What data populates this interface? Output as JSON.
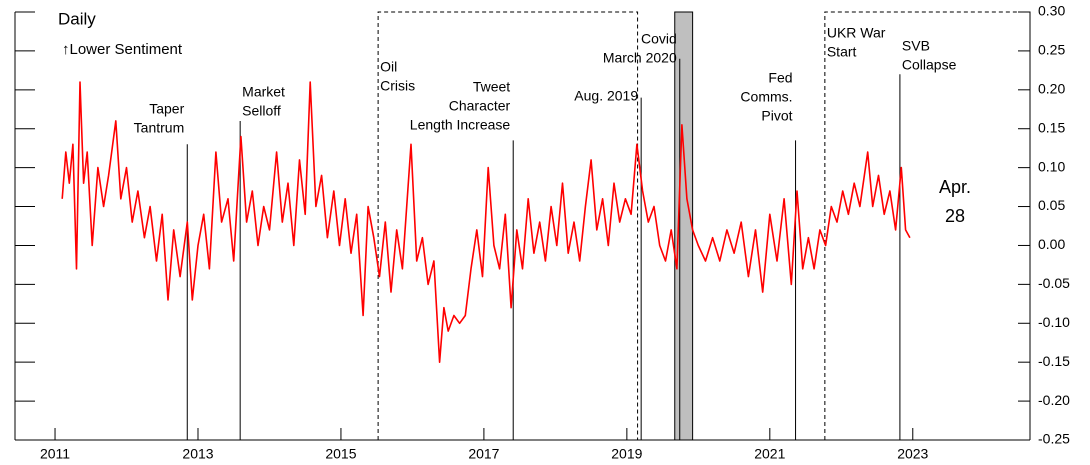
{
  "chart_data": {
    "type": "line",
    "annotations": [
      "Daily",
      "↑Lower Sentiment",
      "Apr.",
      "28"
    ],
    "color": "#ff0000",
    "x": [
      2011.1,
      2011.15,
      2011.2,
      2011.25,
      2011.3,
      2011.35,
      2011.4,
      2011.45,
      2011.52,
      2011.6,
      2011.68,
      2011.75,
      2011.85,
      2011.92,
      2012.0,
      2012.08,
      2012.16,
      2012.25,
      2012.33,
      2012.42,
      2012.5,
      2012.58,
      2012.66,
      2012.75,
      2012.85,
      2012.92,
      2013.0,
      2013.08,
      2013.16,
      2013.25,
      2013.33,
      2013.42,
      2013.5,
      2013.6,
      2013.68,
      2013.76,
      2013.84,
      2013.92,
      2014.0,
      2014.1,
      2014.18,
      2014.26,
      2014.34,
      2014.42,
      2014.5,
      2014.57,
      2014.65,
      2014.73,
      2014.81,
      2014.9,
      2014.98,
      2015.06,
      2015.14,
      2015.22,
      2015.31,
      2015.38,
      2015.46,
      2015.54,
      2015.62,
      2015.7,
      2015.78,
      2015.86,
      2015.98,
      2016.06,
      2016.14,
      2016.22,
      2016.3,
      2016.38,
      2016.44,
      2016.5,
      2016.58,
      2016.66,
      2016.74,
      2016.82,
      2016.9,
      2016.98,
      2017.06,
      2017.14,
      2017.22,
      2017.3,
      2017.38,
      2017.46,
      2017.54,
      2017.62,
      2017.7,
      2017.78,
      2017.86,
      2017.94,
      2018.02,
      2018.1,
      2018.18,
      2018.26,
      2018.34,
      2018.42,
      2018.5,
      2018.58,
      2018.66,
      2018.74,
      2018.82,
      2018.9,
      2018.98,
      2019.06,
      2019.14,
      2019.22,
      2019.3,
      2019.38,
      2019.46,
      2019.54,
      2019.62,
      2019.7,
      2019.77,
      2019.84,
      2019.92,
      2020.0,
      2020.1,
      2020.2,
      2020.3,
      2020.4,
      2020.5,
      2020.6,
      2020.7,
      2020.8,
      2020.9,
      2021.0,
      2021.1,
      2021.2,
      2021.3,
      2021.38,
      2021.46,
      2021.54,
      2021.62,
      2021.7,
      2021.78,
      2021.86,
      2021.94,
      2022.02,
      2022.1,
      2022.18,
      2022.26,
      2022.37,
      2022.44,
      2022.52,
      2022.6,
      2022.68,
      2022.76,
      2022.84,
      2022.9,
      2022.96
    ],
    "values": [
      0.06,
      0.12,
      0.08,
      0.13,
      -0.03,
      0.21,
      0.08,
      0.12,
      0.0,
      0.1,
      0.05,
      0.09,
      0.16,
      0.06,
      0.1,
      0.03,
      0.07,
      0.01,
      0.05,
      -0.02,
      0.04,
      -0.07,
      0.02,
      -0.04,
      0.03,
      -0.07,
      0.0,
      0.04,
      -0.03,
      0.12,
      0.03,
      0.06,
      -0.02,
      0.14,
      0.03,
      0.07,
      0.0,
      0.05,
      0.02,
      0.12,
      0.03,
      0.08,
      0.0,
      0.11,
      0.04,
      0.21,
      0.05,
      0.09,
      0.01,
      0.07,
      0.0,
      0.06,
      -0.01,
      0.04,
      -0.09,
      0.05,
      0.01,
      -0.04,
      0.03,
      -0.06,
      0.02,
      -0.03,
      0.13,
      -0.02,
      0.01,
      -0.05,
      -0.02,
      -0.15,
      -0.08,
      -0.11,
      -0.09,
      -0.1,
      -0.09,
      -0.03,
      0.02,
      -0.04,
      0.1,
      0.0,
      -0.03,
      0.04,
      -0.08,
      0.02,
      -0.03,
      0.06,
      -0.01,
      0.03,
      -0.02,
      0.05,
      0.0,
      0.08,
      -0.01,
      0.03,
      -0.02,
      0.05,
      0.11,
      0.02,
      0.06,
      0.0,
      0.08,
      0.03,
      0.06,
      0.04,
      0.13,
      0.07,
      0.03,
      0.05,
      0.0,
      -0.02,
      0.02,
      -0.03,
      0.155,
      0.06,
      0.02,
      0.0,
      -0.02,
      0.01,
      -0.02,
      0.02,
      -0.01,
      0.03,
      -0.04,
      0.02,
      -0.06,
      0.04,
      -0.02,
      0.06,
      -0.05,
      0.07,
      -0.03,
      0.01,
      -0.03,
      0.02,
      0.0,
      0.05,
      0.03,
      0.07,
      0.04,
      0.08,
      0.05,
      0.12,
      0.05,
      0.09,
      0.04,
      0.07,
      0.02,
      0.1,
      0.02,
      0.01
    ],
    "xlim": [
      2010.44,
      2024.64
    ],
    "xticks": [
      2011,
      2013,
      2015,
      2017,
      2019,
      2021,
      2023
    ],
    "ylim": [
      -0.25,
      0.3
    ],
    "yticks": [
      {
        "value": 0.3,
        "label": "0.30"
      },
      {
        "value": 0.25,
        "label": "0.25"
      },
      {
        "value": 0.2,
        "label": "0.20"
      },
      {
        "value": 0.15,
        "label": "0.15"
      },
      {
        "value": 0.1,
        "label": "0.10"
      },
      {
        "value": 0.05,
        "label": "0.05"
      },
      {
        "value": 0,
        "label": "0.00"
      },
      {
        "value": -0.05,
        "label": "-0.05"
      },
      {
        "value": -0.1,
        "label": "-0.10"
      },
      {
        "value": -0.15,
        "label": "-0.15"
      },
      {
        "value": -0.2,
        "label": "-0.20"
      },
      {
        "value": -0.25,
        "label": "-0.25"
      }
    ],
    "events": [
      {
        "x": 2012.85,
        "top": 0.13,
        "label": [
          "Taper",
          "Tantrum"
        ]
      },
      {
        "x": 2013.59,
        "top": 0.16,
        "label": [
          "Market",
          "Selloff"
        ]
      },
      {
        "x": 2015.52,
        "label": [
          "Oil",
          "Crisis"
        ]
      },
      {
        "x": 2017.41,
        "top": 0.135,
        "label": [
          "Tweet",
          "Character",
          "Length Increase"
        ]
      },
      {
        "x": 2019.2,
        "top": 0.19,
        "label": [
          "Aug. 2019"
        ]
      },
      {
        "x": 2019.74,
        "top": 0.24,
        "label": [
          "Covid",
          "March 2020"
        ]
      },
      {
        "x": 2021.36,
        "top": 0.135,
        "label": [
          "Fed",
          "Comms.",
          "Pivot"
        ]
      },
      {
        "x": 2021.77,
        "label": [
          "UKR War",
          "Start"
        ]
      },
      {
        "x": 2022.82,
        "top": 0.22,
        "label": [
          "SVB",
          "Collapse"
        ]
      }
    ],
    "periods": [
      [
        2015.52,
        2019.15
      ],
      [
        2021.77,
        2024.64
      ]
    ],
    "shade": [
      2019.67,
      2019.92
    ],
    "shade_color": "#bfbfbf"
  }
}
